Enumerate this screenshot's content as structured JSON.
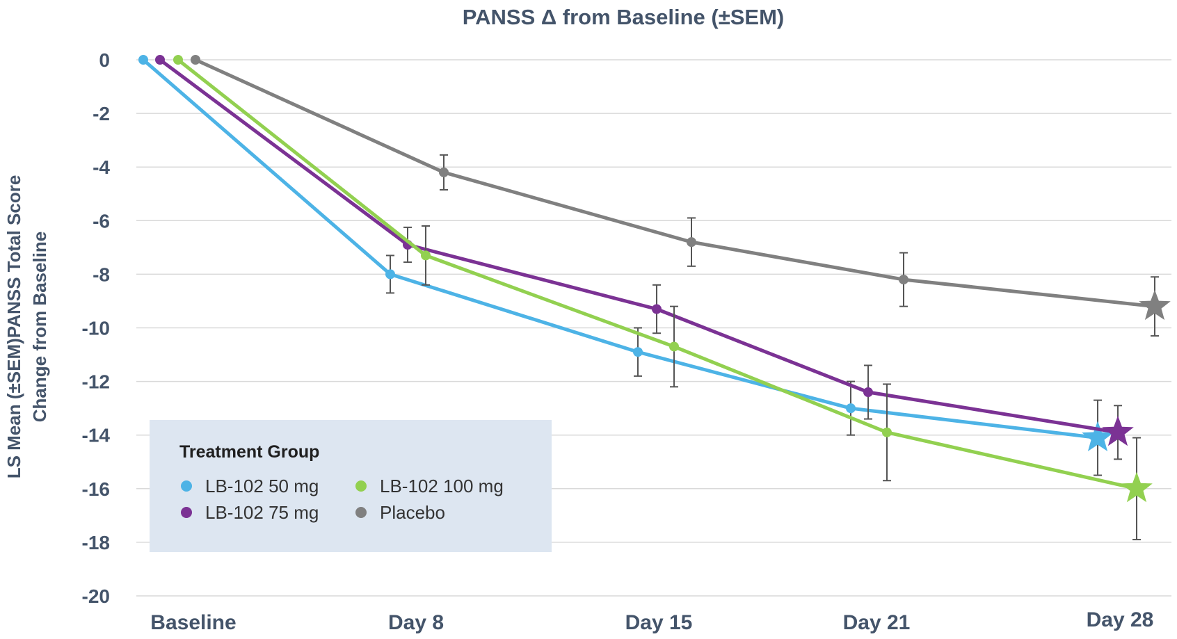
{
  "chart_data": {
    "type": "line",
    "title": "PANSS Δ from Baseline (±SEM)",
    "ylabel_lines": [
      "LS Mean (±SEM)PANSS Total Score",
      "Change from Baseline"
    ],
    "xlabel": "",
    "categories": [
      "Baseline",
      "Day 8",
      "Day 15",
      "Day 21",
      "Day 28"
    ],
    "ylim": [
      -20,
      0
    ],
    "yticks": [
      0,
      -2,
      -4,
      -6,
      -8,
      -10,
      -12,
      -14,
      -16,
      -18,
      -20
    ],
    "grid": true,
    "legend": {
      "title": "Treatment Group",
      "position": "bottom-left"
    },
    "series": [
      {
        "name": "LB-102 50 mg",
        "color": "#4db3e6",
        "values": [
          0,
          -8.0,
          -10.9,
          -13.0,
          -14.1
        ],
        "sem": [
          0,
          0.7,
          0.9,
          1.0,
          1.4
        ]
      },
      {
        "name": "LB-102 75 mg",
        "color": "#7b3294",
        "values": [
          0,
          -6.9,
          -9.3,
          -12.4,
          -13.9
        ],
        "sem": [
          0,
          0.65,
          0.9,
          1.0,
          1.0
        ]
      },
      {
        "name": "LB-102 100 mg",
        "color": "#92d050",
        "values": [
          0,
          -7.3,
          -10.7,
          -13.9,
          -16.0
        ],
        "sem": [
          0,
          1.1,
          1.5,
          1.8,
          1.9
        ]
      },
      {
        "name": "Placebo",
        "color": "#808080",
        "values": [
          0,
          -4.2,
          -6.8,
          -8.2,
          -9.2
        ],
        "sem": [
          0,
          0.65,
          0.9,
          1.0,
          1.1
        ]
      }
    ],
    "endpoint_marker": "star"
  }
}
